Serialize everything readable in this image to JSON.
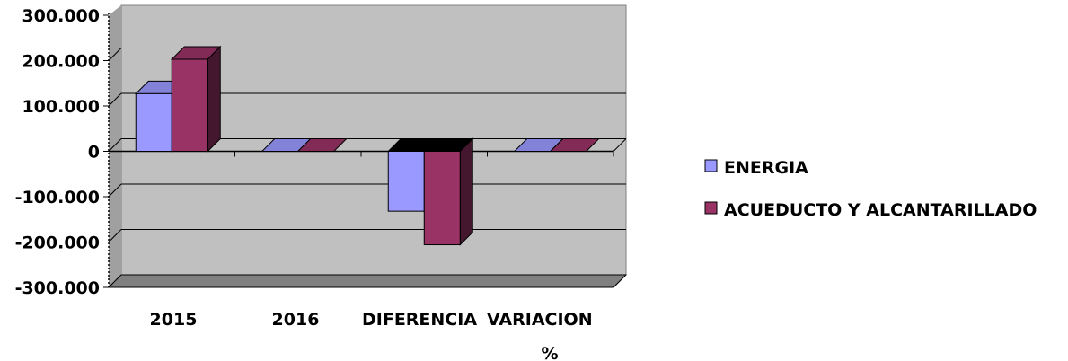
{
  "chart_data": {
    "type": "bar",
    "categories": [
      "2015",
      "2016",
      "DIFERENCIA",
      "VARIACION %"
    ],
    "category_labels": [
      [
        "2015"
      ],
      [
        "2016"
      ],
      [
        "DIFERENCIA"
      ],
      [
        "VARIACION",
        "%"
      ]
    ],
    "series": [
      {
        "name": "ENERGIA",
        "values": [
          127000,
          0,
          -132000,
          0
        ],
        "color": "#9999ff"
      },
      {
        "name": "ACUEDUCTO Y ALCANTARILLADO",
        "values": [
          203000,
          0,
          -206000,
          0
        ],
        "color": "#993366"
      }
    ],
    "ylim": [
      -300000,
      300000
    ],
    "yticks": [
      300000,
      200000,
      100000,
      0,
      -100000,
      -200000,
      -300000
    ],
    "ytick_labels": [
      "300.000",
      "200.000",
      "100.000",
      "0",
      "-100.000",
      "-200.000",
      "-300.000"
    ],
    "title": "",
    "xlabel": "",
    "ylabel": "",
    "grid": true,
    "legend_position": "right",
    "plot_background": "#c0c0c0",
    "grid_color": "#000000"
  }
}
